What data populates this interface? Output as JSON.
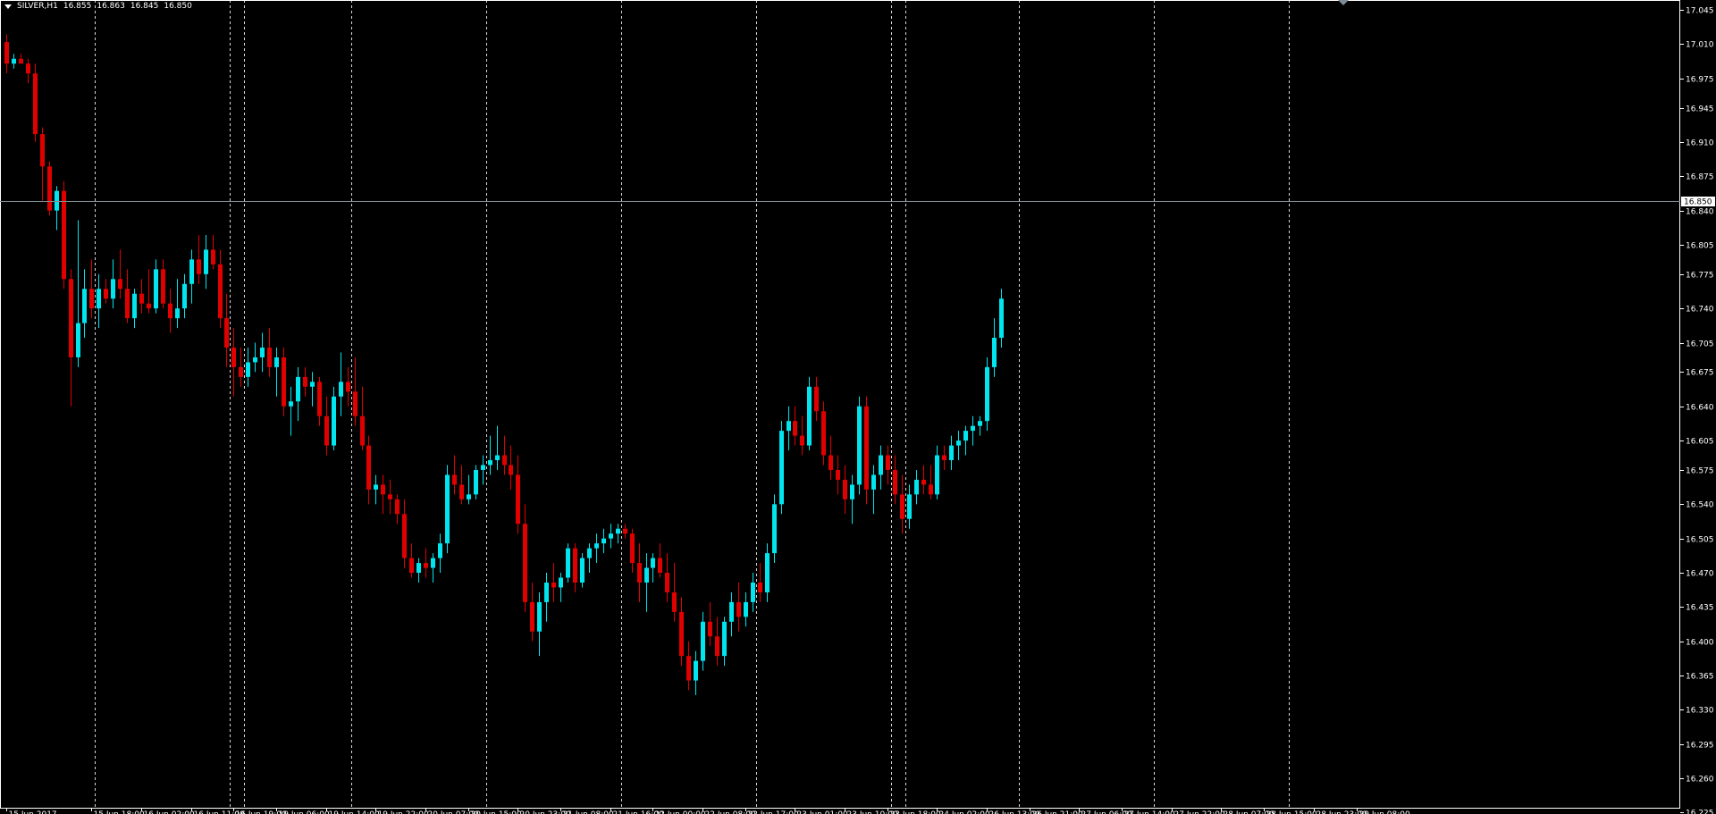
{
  "header": {
    "symbol_tf": "SILVER,H1",
    "o": "16.855",
    "h": "16.863",
    "l": "16.845",
    "c": "16.850"
  },
  "current_price_label": "16.850",
  "colors": {
    "background": "#000000",
    "bull": "#00e5ee",
    "bear": "#e00000",
    "text": "#ffffff",
    "grid": "#ffffff",
    "price_line": "#7f8c96"
  },
  "chart_data": {
    "type": "candlestick",
    "symbol": "SILVER",
    "timeframe": "H1",
    "ylim": [
      16.23,
      17.055
    ],
    "y_ticks": [
      "17.045",
      "17.010",
      "16.975",
      "16.945",
      "16.910",
      "16.875",
      "16.840",
      "16.805",
      "16.775",
      "16.740",
      "16.705",
      "16.675",
      "16.640",
      "16.605",
      "16.575",
      "16.540",
      "16.505",
      "16.470",
      "16.435",
      "16.400",
      "16.365",
      "16.330",
      "16.295",
      "16.260",
      "16.225"
    ],
    "x_ticks": [
      {
        "bar": 0,
        "label": "15 Jun 2017"
      },
      {
        "bar": 12,
        "label": "15 Jun 18:00"
      },
      {
        "bar": 19,
        "label": "16 Jun 02:00"
      },
      {
        "bar": 26,
        "label": "16 Jun 11:00"
      },
      {
        "bar": 32,
        "label": "16 Jun 19:00"
      },
      {
        "bar": 38,
        "label": "19 Jun 06:00"
      },
      {
        "bar": 45,
        "label": "19 Jun 14:00"
      },
      {
        "bar": 52,
        "label": "19 Jun 22:00"
      },
      {
        "bar": 59,
        "label": "20 Jun 07:00"
      },
      {
        "bar": 65,
        "label": "20 Jun 15:00"
      },
      {
        "bar": 72,
        "label": "20 Jun 23:00"
      },
      {
        "bar": 78,
        "label": "21 Jun 08:00"
      },
      {
        "bar": 85,
        "label": "21 Jun 16:00"
      },
      {
        "bar": 91,
        "label": "22 Jun 00:00"
      },
      {
        "bar": 98,
        "label": "22 Jun 08:00"
      },
      {
        "bar": 104,
        "label": "22 Jun 17:00"
      },
      {
        "bar": 111,
        "label": "23 Jun 01:00"
      },
      {
        "bar": 118,
        "label": "23 Jun 10:00"
      },
      {
        "bar": 124,
        "label": "23 Jun 18:00"
      },
      {
        "bar": 131,
        "label": "24 Jun 02:00"
      },
      {
        "bar": 138,
        "label": "26 Jun 13:00"
      },
      {
        "bar": 144,
        "label": "26 Jun 21:00"
      },
      {
        "bar": 151,
        "label": "27 Jun 06:00"
      },
      {
        "bar": 157,
        "label": "27 Jun 14:00"
      },
      {
        "bar": 164,
        "label": "27 Jun 22:00"
      },
      {
        "bar": 171,
        "label": "28 Jun 07:00"
      },
      {
        "bar": 177,
        "label": "28 Jun 15:00"
      },
      {
        "bar": 184,
        "label": "28 Jun 23:00"
      },
      {
        "bar": 190,
        "label": "29 Jun 08:00"
      }
    ],
    "period_separators": [
      12,
      31,
      33,
      48,
      67,
      86,
      105,
      124,
      126,
      142,
      161,
      180
    ],
    "candles": [
      {
        "o": 17.012,
        "h": 17.02,
        "l": 16.98,
        "c": 16.99
      },
      {
        "o": 16.99,
        "h": 17.0,
        "l": 16.985,
        "c": 16.995
      },
      {
        "o": 16.995,
        "h": 17.0,
        "l": 16.99,
        "c": 16.99
      },
      {
        "o": 16.99,
        "h": 16.995,
        "l": 16.97,
        "c": 16.98
      },
      {
        "o": 16.98,
        "h": 16.99,
        "l": 16.91,
        "c": 16.918
      },
      {
        "o": 16.918,
        "h": 16.925,
        "l": 16.85,
        "c": 16.885
      },
      {
        "o": 16.885,
        "h": 16.89,
        "l": 16.835,
        "c": 16.84
      },
      {
        "o": 16.84,
        "h": 16.865,
        "l": 16.82,
        "c": 16.86
      },
      {
        "o": 16.86,
        "h": 16.87,
        "l": 16.76,
        "c": 16.77
      },
      {
        "o": 16.77,
        "h": 16.78,
        "l": 16.64,
        "c": 16.69
      },
      {
        "o": 16.69,
        "h": 16.83,
        "l": 16.68,
        "c": 16.725
      },
      {
        "o": 16.725,
        "h": 16.78,
        "l": 16.71,
        "c": 16.76
      },
      {
        "o": 16.76,
        "h": 16.79,
        "l": 16.73,
        "c": 16.74
      },
      {
        "o": 16.74,
        "h": 16.775,
        "l": 16.72,
        "c": 16.76
      },
      {
        "o": 16.76,
        "h": 16.77,
        "l": 16.745,
        "c": 16.75
      },
      {
        "o": 16.75,
        "h": 16.79,
        "l": 16.74,
        "c": 16.77
      },
      {
        "o": 16.77,
        "h": 16.8,
        "l": 16.75,
        "c": 16.76
      },
      {
        "o": 16.76,
        "h": 16.78,
        "l": 16.725,
        "c": 16.73
      },
      {
        "o": 16.73,
        "h": 16.76,
        "l": 16.72,
        "c": 16.755
      },
      {
        "o": 16.755,
        "h": 16.77,
        "l": 16.735,
        "c": 16.745
      },
      {
        "o": 16.745,
        "h": 16.78,
        "l": 16.735,
        "c": 16.74
      },
      {
        "o": 16.74,
        "h": 16.79,
        "l": 16.735,
        "c": 16.78
      },
      {
        "o": 16.78,
        "h": 16.79,
        "l": 16.74,
        "c": 16.745
      },
      {
        "o": 16.745,
        "h": 16.76,
        "l": 16.715,
        "c": 16.73
      },
      {
        "o": 16.73,
        "h": 16.77,
        "l": 16.72,
        "c": 16.74
      },
      {
        "o": 16.74,
        "h": 16.775,
        "l": 16.73,
        "c": 16.765
      },
      {
        "o": 16.765,
        "h": 16.8,
        "l": 16.745,
        "c": 16.79
      },
      {
        "o": 16.79,
        "h": 16.815,
        "l": 16.765,
        "c": 16.775
      },
      {
        "o": 16.775,
        "h": 16.815,
        "l": 16.76,
        "c": 16.8
      },
      {
        "o": 16.8,
        "h": 16.815,
        "l": 16.78,
        "c": 16.785
      },
      {
        "o": 16.785,
        "h": 16.8,
        "l": 16.72,
        "c": 16.73
      },
      {
        "o": 16.73,
        "h": 16.755,
        "l": 16.68,
        "c": 16.7
      },
      {
        "o": 16.7,
        "h": 16.72,
        "l": 16.65,
        "c": 16.68
      },
      {
        "o": 16.68,
        "h": 16.7,
        "l": 16.66,
        "c": 16.67
      },
      {
        "o": 16.67,
        "h": 16.7,
        "l": 16.66,
        "c": 16.685
      },
      {
        "o": 16.685,
        "h": 16.705,
        "l": 16.675,
        "c": 16.69
      },
      {
        "o": 16.69,
        "h": 16.715,
        "l": 16.675,
        "c": 16.7
      },
      {
        "o": 16.7,
        "h": 16.72,
        "l": 16.67,
        "c": 16.68
      },
      {
        "o": 16.68,
        "h": 16.7,
        "l": 16.65,
        "c": 16.69
      },
      {
        "o": 16.69,
        "h": 16.7,
        "l": 16.63,
        "c": 16.64
      },
      {
        "o": 16.64,
        "h": 16.66,
        "l": 16.61,
        "c": 16.645
      },
      {
        "o": 16.645,
        "h": 16.68,
        "l": 16.625,
        "c": 16.67
      },
      {
        "o": 16.67,
        "h": 16.68,
        "l": 16.65,
        "c": 16.66
      },
      {
        "o": 16.66,
        "h": 16.675,
        "l": 16.64,
        "c": 16.665
      },
      {
        "o": 16.665,
        "h": 16.67,
        "l": 16.62,
        "c": 16.63
      },
      {
        "o": 16.63,
        "h": 16.65,
        "l": 16.59,
        "c": 16.6
      },
      {
        "o": 16.6,
        "h": 16.66,
        "l": 16.595,
        "c": 16.65
      },
      {
        "o": 16.65,
        "h": 16.695,
        "l": 16.63,
        "c": 16.665
      },
      {
        "o": 16.665,
        "h": 16.68,
        "l": 16.64,
        "c": 16.655
      },
      {
        "o": 16.655,
        "h": 16.69,
        "l": 16.62,
        "c": 16.63
      },
      {
        "o": 16.63,
        "h": 16.66,
        "l": 16.595,
        "c": 16.6
      },
      {
        "o": 16.6,
        "h": 16.61,
        "l": 16.54,
        "c": 16.555
      },
      {
        "o": 16.555,
        "h": 16.57,
        "l": 16.54,
        "c": 16.56
      },
      {
        "o": 16.56,
        "h": 16.57,
        "l": 16.53,
        "c": 16.55
      },
      {
        "o": 16.55,
        "h": 16.565,
        "l": 16.53,
        "c": 16.545
      },
      {
        "o": 16.545,
        "h": 16.55,
        "l": 16.52,
        "c": 16.53
      },
      {
        "o": 16.53,
        "h": 16.545,
        "l": 16.475,
        "c": 16.485
      },
      {
        "o": 16.485,
        "h": 16.5,
        "l": 16.465,
        "c": 16.47
      },
      {
        "o": 16.47,
        "h": 16.485,
        "l": 16.46,
        "c": 16.48
      },
      {
        "o": 16.48,
        "h": 16.495,
        "l": 16.465,
        "c": 16.475
      },
      {
        "o": 16.475,
        "h": 16.49,
        "l": 16.46,
        "c": 16.485
      },
      {
        "o": 16.485,
        "h": 16.51,
        "l": 16.47,
        "c": 16.5
      },
      {
        "o": 16.5,
        "h": 16.58,
        "l": 16.49,
        "c": 16.57
      },
      {
        "o": 16.57,
        "h": 16.59,
        "l": 16.55,
        "c": 16.56
      },
      {
        "o": 16.56,
        "h": 16.58,
        "l": 16.54,
        "c": 16.545
      },
      {
        "o": 16.545,
        "h": 16.57,
        "l": 16.54,
        "c": 16.55
      },
      {
        "o": 16.55,
        "h": 16.58,
        "l": 16.545,
        "c": 16.575
      },
      {
        "o": 16.575,
        "h": 16.59,
        "l": 16.56,
        "c": 16.58
      },
      {
        "o": 16.58,
        "h": 16.61,
        "l": 16.57,
        "c": 16.585
      },
      {
        "o": 16.585,
        "h": 16.62,
        "l": 16.575,
        "c": 16.59
      },
      {
        "o": 16.59,
        "h": 16.61,
        "l": 16.57,
        "c": 16.58
      },
      {
        "o": 16.58,
        "h": 16.6,
        "l": 16.555,
        "c": 16.57
      },
      {
        "o": 16.57,
        "h": 16.59,
        "l": 16.51,
        "c": 16.52
      },
      {
        "o": 16.52,
        "h": 16.54,
        "l": 16.43,
        "c": 16.44
      },
      {
        "o": 16.44,
        "h": 16.46,
        "l": 16.4,
        "c": 16.41
      },
      {
        "o": 16.41,
        "h": 16.45,
        "l": 16.385,
        "c": 16.44
      },
      {
        "o": 16.44,
        "h": 16.47,
        "l": 16.42,
        "c": 16.46
      },
      {
        "o": 16.46,
        "h": 16.48,
        "l": 16.44,
        "c": 16.455
      },
      {
        "o": 16.455,
        "h": 16.47,
        "l": 16.44,
        "c": 16.465
      },
      {
        "o": 16.465,
        "h": 16.5,
        "l": 16.46,
        "c": 16.495
      },
      {
        "o": 16.495,
        "h": 16.5,
        "l": 16.45,
        "c": 16.46
      },
      {
        "o": 16.46,
        "h": 16.49,
        "l": 16.455,
        "c": 16.485
      },
      {
        "o": 16.485,
        "h": 16.5,
        "l": 16.47,
        "c": 16.495
      },
      {
        "o": 16.495,
        "h": 16.51,
        "l": 16.48,
        "c": 16.5
      },
      {
        "o": 16.5,
        "h": 16.515,
        "l": 16.49,
        "c": 16.505
      },
      {
        "o": 16.505,
        "h": 16.52,
        "l": 16.495,
        "c": 16.51
      },
      {
        "o": 16.51,
        "h": 16.52,
        "l": 16.5,
        "c": 16.515
      },
      {
        "o": 16.515,
        "h": 16.52,
        "l": 16.505,
        "c": 16.51
      },
      {
        "o": 16.51,
        "h": 16.515,
        "l": 16.47,
        "c": 16.48
      },
      {
        "o": 16.48,
        "h": 16.5,
        "l": 16.44,
        "c": 16.46
      },
      {
        "o": 16.46,
        "h": 16.49,
        "l": 16.43,
        "c": 16.475
      },
      {
        "o": 16.475,
        "h": 16.49,
        "l": 16.46,
        "c": 16.485
      },
      {
        "o": 16.485,
        "h": 16.5,
        "l": 16.465,
        "c": 16.47
      },
      {
        "o": 16.47,
        "h": 16.49,
        "l": 16.44,
        "c": 16.45
      },
      {
        "o": 16.45,
        "h": 16.48,
        "l": 16.42,
        "c": 16.43
      },
      {
        "o": 16.43,
        "h": 16.445,
        "l": 16.375,
        "c": 16.385
      },
      {
        "o": 16.385,
        "h": 16.4,
        "l": 16.35,
        "c": 16.36
      },
      {
        "o": 16.36,
        "h": 16.39,
        "l": 16.345,
        "c": 16.38
      },
      {
        "o": 16.38,
        "h": 16.43,
        "l": 16.37,
        "c": 16.42
      },
      {
        "o": 16.42,
        "h": 16.44,
        "l": 16.395,
        "c": 16.405
      },
      {
        "o": 16.405,
        "h": 16.425,
        "l": 16.375,
        "c": 16.385
      },
      {
        "o": 16.385,
        "h": 16.425,
        "l": 16.375,
        "c": 16.42
      },
      {
        "o": 16.42,
        "h": 16.45,
        "l": 16.405,
        "c": 16.44
      },
      {
        "o": 16.44,
        "h": 16.46,
        "l": 16.41,
        "c": 16.425
      },
      {
        "o": 16.425,
        "h": 16.45,
        "l": 16.415,
        "c": 16.44
      },
      {
        "o": 16.44,
        "h": 16.47,
        "l": 16.43,
        "c": 16.46
      },
      {
        "o": 16.46,
        "h": 16.48,
        "l": 16.44,
        "c": 16.45
      },
      {
        "o": 16.45,
        "h": 16.5,
        "l": 16.44,
        "c": 16.49
      },
      {
        "o": 16.49,
        "h": 16.55,
        "l": 16.48,
        "c": 16.54
      },
      {
        "o": 16.54,
        "h": 16.625,
        "l": 16.53,
        "c": 16.615
      },
      {
        "o": 16.615,
        "h": 16.64,
        "l": 16.595,
        "c": 16.625
      },
      {
        "o": 16.625,
        "h": 16.64,
        "l": 16.6,
        "c": 16.61
      },
      {
        "o": 16.61,
        "h": 16.63,
        "l": 16.59,
        "c": 16.6
      },
      {
        "o": 16.6,
        "h": 16.67,
        "l": 16.595,
        "c": 16.66
      },
      {
        "o": 16.66,
        "h": 16.67,
        "l": 16.625,
        "c": 16.635
      },
      {
        "o": 16.635,
        "h": 16.645,
        "l": 16.58,
        "c": 16.59
      },
      {
        "o": 16.59,
        "h": 16.61,
        "l": 16.565,
        "c": 16.575
      },
      {
        "o": 16.575,
        "h": 16.59,
        "l": 16.55,
        "c": 16.565
      },
      {
        "o": 16.565,
        "h": 16.58,
        "l": 16.53,
        "c": 16.545
      },
      {
        "o": 16.545,
        "h": 16.57,
        "l": 16.52,
        "c": 16.56
      },
      {
        "o": 16.56,
        "h": 16.65,
        "l": 16.55,
        "c": 16.64
      },
      {
        "o": 16.64,
        "h": 16.65,
        "l": 16.54,
        "c": 16.555
      },
      {
        "o": 16.555,
        "h": 16.58,
        "l": 16.53,
        "c": 16.57
      },
      {
        "o": 16.57,
        "h": 16.6,
        "l": 16.555,
        "c": 16.59
      },
      {
        "o": 16.59,
        "h": 16.6,
        "l": 16.56,
        "c": 16.575
      },
      {
        "o": 16.575,
        "h": 16.59,
        "l": 16.54,
        "c": 16.55
      },
      {
        "o": 16.55,
        "h": 16.57,
        "l": 16.51,
        "c": 16.525
      },
      {
        "o": 16.525,
        "h": 16.56,
        "l": 16.515,
        "c": 16.55
      },
      {
        "o": 16.55,
        "h": 16.575,
        "l": 16.54,
        "c": 16.565
      },
      {
        "o": 16.565,
        "h": 16.58,
        "l": 16.55,
        "c": 16.56
      },
      {
        "o": 16.56,
        "h": 16.58,
        "l": 16.545,
        "c": 16.55
      },
      {
        "o": 16.55,
        "h": 16.6,
        "l": 16.545,
        "c": 16.59
      },
      {
        "o": 16.59,
        "h": 16.6,
        "l": 16.575,
        "c": 16.585
      },
      {
        "o": 16.585,
        "h": 16.61,
        "l": 16.575,
        "c": 16.6
      },
      {
        "o": 16.6,
        "h": 16.615,
        "l": 16.585,
        "c": 16.605
      },
      {
        "o": 16.605,
        "h": 16.62,
        "l": 16.59,
        "c": 16.615
      },
      {
        "o": 16.615,
        "h": 16.63,
        "l": 16.6,
        "c": 16.62
      },
      {
        "o": 16.62,
        "h": 16.63,
        "l": 16.61,
        "c": 16.625
      },
      {
        "o": 16.625,
        "h": 16.69,
        "l": 16.615,
        "c": 16.68
      },
      {
        "o": 16.68,
        "h": 16.73,
        "l": 16.67,
        "c": 16.71
      },
      {
        "o": 16.71,
        "h": 16.76,
        "l": 16.7,
        "c": 16.75
      }
    ]
  }
}
